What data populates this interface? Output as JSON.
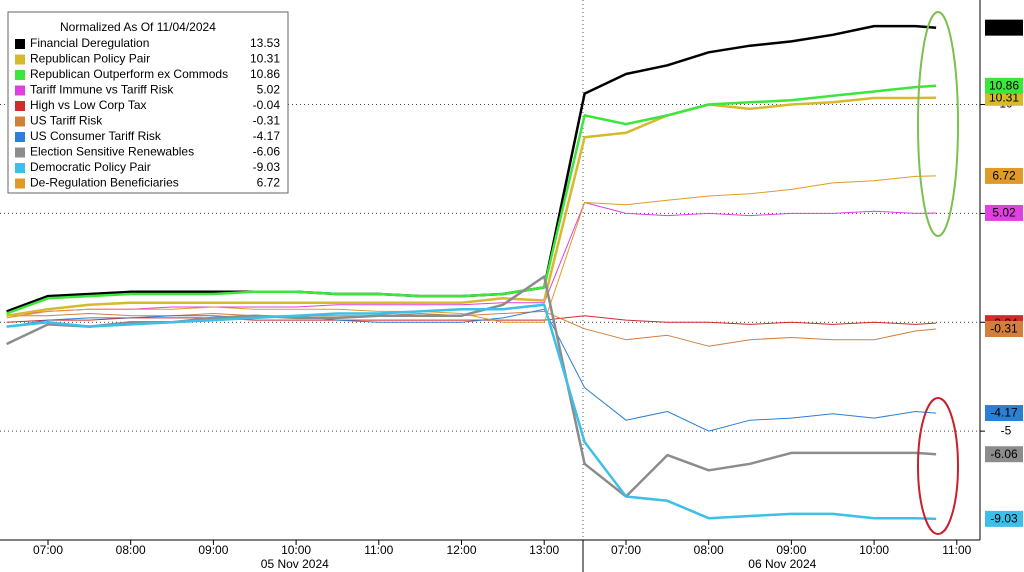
{
  "chart_data": {
    "type": "line",
    "legend_title": "Normalized As Of 11/04/2024",
    "x_day_labels": [
      "05 Nov 2024",
      "06 Nov 2024"
    ],
    "x": [
      "05 Nov 2024 06:30",
      "05 Nov 2024 07:00",
      "05 Nov 2024 07:30",
      "05 Nov 2024 08:00",
      "05 Nov 2024 08:30",
      "05 Nov 2024 09:00",
      "05 Nov 2024 09:30",
      "05 Nov 2024 10:00",
      "05 Nov 2024 10:30",
      "05 Nov 2024 11:00",
      "05 Nov 2024 11:30",
      "05 Nov 2024 12:00",
      "05 Nov 2024 12:30",
      "05 Nov 2024 13:00",
      "06 Nov 2024 06:30",
      "06 Nov 2024 07:00",
      "06 Nov 2024 07:30",
      "06 Nov 2024 08:00",
      "06 Nov 2024 08:30",
      "06 Nov 2024 09:00",
      "06 Nov 2024 09:30",
      "06 Nov 2024 10:00",
      "06 Nov 2024 10:30",
      "06 Nov 2024 10:45"
    ],
    "xticks": [
      {
        "value": "05 Nov 2024 07:00",
        "label": "07:00"
      },
      {
        "value": "05 Nov 2024 08:00",
        "label": "08:00"
      },
      {
        "value": "05 Nov 2024 09:00",
        "label": "09:00"
      },
      {
        "value": "05 Nov 2024 10:00",
        "label": "10:00"
      },
      {
        "value": "05 Nov 2024 11:00",
        "label": "11:00"
      },
      {
        "value": "05 Nov 2024 12:00",
        "label": "12:00"
      },
      {
        "value": "05 Nov 2024 13:00",
        "label": "13:00"
      },
      {
        "value": "06 Nov 2024 07:00",
        "label": "07:00"
      },
      {
        "value": "06 Nov 2024 08:00",
        "label": "08:00"
      },
      {
        "value": "06 Nov 2024 09:00",
        "label": "09:00"
      },
      {
        "value": "06 Nov 2024 10:00",
        "label": "10:00"
      },
      {
        "value": "06 Nov 2024 11:00",
        "label": "11:00"
      }
    ],
    "ylim": [
      -10,
      14.8
    ],
    "yticks": [
      -5,
      0,
      5,
      10
    ],
    "grid": true,
    "legend": "upper left",
    "series": [
      {
        "name": "Financial Deregulation",
        "color": "#000000",
        "width": 2.5,
        "values": [
          0.5,
          1.2,
          1.3,
          1.4,
          1.4,
          1.4,
          1.4,
          1.4,
          1.3,
          1.3,
          1.2,
          1.2,
          1.3,
          1.6,
          10.5,
          11.4,
          11.8,
          12.4,
          12.7,
          12.9,
          13.2,
          13.6,
          13.6,
          13.53
        ]
      },
      {
        "name": "Republican Policy Pair",
        "color": "#d6b92c",
        "width": 2.5,
        "values": [
          0.3,
          0.6,
          0.8,
          0.9,
          0.9,
          0.9,
          0.9,
          0.9,
          0.9,
          0.9,
          0.9,
          0.9,
          1.1,
          1.0,
          8.5,
          8.7,
          9.5,
          10.0,
          9.8,
          10.0,
          10.1,
          10.3,
          10.3,
          10.31
        ]
      },
      {
        "name": "Republican Outperform ex Commods",
        "color": "#3de63d",
        "width": 2.5,
        "values": [
          0.4,
          1.1,
          1.2,
          1.3,
          1.3,
          1.3,
          1.4,
          1.4,
          1.3,
          1.3,
          1.2,
          1.2,
          1.3,
          1.6,
          9.5,
          9.1,
          9.5,
          10.0,
          10.1,
          10.2,
          10.4,
          10.6,
          10.8,
          10.86
        ]
      },
      {
        "name": "Tariff Immune vs Tariff Risk",
        "color": "#e040e0",
        "width": 1,
        "values": [
          0.3,
          0.5,
          0.6,
          0.6,
          0.7,
          0.7,
          0.7,
          0.7,
          0.8,
          0.8,
          0.8,
          0.8,
          0.9,
          0.9,
          5.5,
          5.0,
          4.9,
          5.0,
          4.9,
          5.0,
          5.0,
          5.1,
          5.0,
          5.02
        ]
      },
      {
        "name": "High vs Low Corp Tax",
        "color": "#d42a2a",
        "width": 1,
        "values": [
          0.0,
          0.1,
          0.1,
          0.2,
          0.2,
          0.2,
          0.1,
          0.1,
          0.1,
          0.1,
          0.1,
          0.1,
          0.1,
          0.1,
          0.3,
          0.1,
          0.0,
          0.0,
          -0.1,
          0.0,
          -0.1,
          0.0,
          -0.1,
          -0.04
        ]
      },
      {
        "name": "US Tariff Risk",
        "color": "#d0803c",
        "width": 1,
        "values": [
          0.3,
          0.3,
          0.4,
          0.3,
          0.3,
          0.4,
          0.3,
          0.3,
          0.3,
          0.3,
          0.4,
          0.3,
          0.4,
          0.5,
          -0.3,
          -0.8,
          -0.6,
          -1.1,
          -0.8,
          -0.7,
          -0.8,
          -0.8,
          -0.4,
          -0.31
        ]
      },
      {
        "name": "US Consumer Tariff Risk",
        "color": "#2b7fd4",
        "width": 1,
        "values": [
          -0.2,
          0.1,
          0.2,
          0.2,
          0.3,
          0.3,
          0.2,
          0.3,
          0.1,
          0.0,
          0.0,
          0.0,
          0.2,
          0.6,
          -3.0,
          -4.5,
          -4.1,
          -5.0,
          -4.5,
          -4.4,
          -4.2,
          -4.4,
          -4.1,
          -4.17
        ]
      },
      {
        "name": "Election Sensitive Renewables",
        "color": "#8c8c8c",
        "width": 2.5,
        "values": [
          -1.0,
          -0.1,
          -0.2,
          0.0,
          0.0,
          0.2,
          0.3,
          0.2,
          0.2,
          0.3,
          0.3,
          0.3,
          0.8,
          2.1,
          -6.5,
          -8.0,
          -6.1,
          -6.8,
          -6.5,
          -6.0,
          -6.0,
          -6.0,
          -6.0,
          -6.06
        ]
      },
      {
        "name": "Democratic Policy Pair",
        "color": "#3cbfe8",
        "width": 2.5,
        "values": [
          -0.2,
          0.0,
          -0.2,
          -0.1,
          0.0,
          0.1,
          0.2,
          0.3,
          0.4,
          0.4,
          0.5,
          0.6,
          0.6,
          0.8,
          -5.5,
          -8.0,
          -8.2,
          -9.0,
          -8.9,
          -8.8,
          -8.8,
          -9.0,
          -9.0,
          -9.03
        ]
      },
      {
        "name": "De-Regulation Beneficiaries",
        "color": "#e09a28",
        "width": 1,
        "values": [
          0.2,
          0.5,
          0.6,
          0.6,
          0.6,
          0.7,
          0.6,
          0.6,
          0.6,
          0.5,
          0.5,
          0.4,
          0.0,
          0.0,
          5.5,
          5.4,
          5.6,
          5.8,
          5.9,
          6.1,
          6.4,
          6.5,
          6.7,
          6.72
        ]
      }
    ]
  }
}
